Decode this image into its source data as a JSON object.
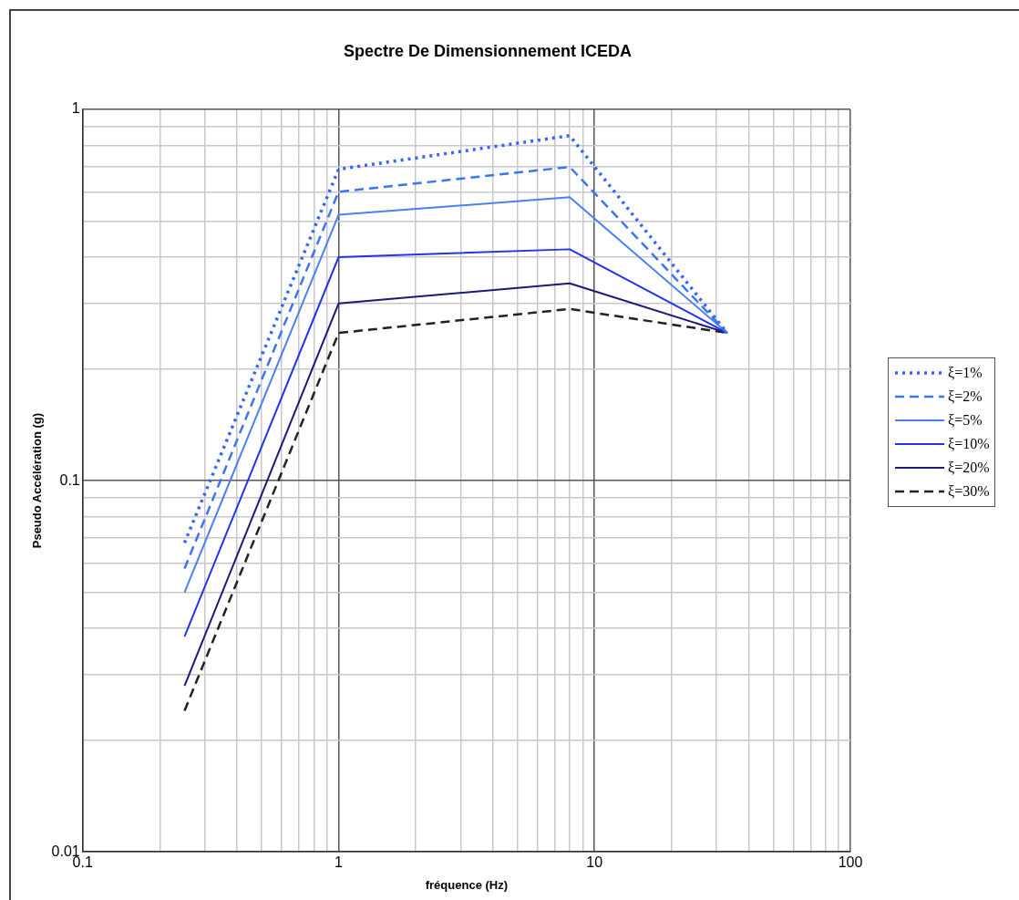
{
  "chart_data": {
    "type": "line",
    "title": "Spectre De Dimensionnement ICEDA",
    "xlabel": "fréquence (Hz)",
    "ylabel": "Pseudo Accélération (g)",
    "x": [
      0.25,
      1,
      8,
      33
    ],
    "series": [
      {
        "name": "ξ=1%",
        "color": "#3366ff",
        "line_style": "dotted",
        "values": [
          0.068,
          0.69,
          0.85,
          0.25
        ]
      },
      {
        "name": "ξ=2%",
        "color": "#3d74f2",
        "line_style": "dashed",
        "values": [
          0.058,
          0.6,
          0.7,
          0.25
        ]
      },
      {
        "name": "ξ=5%",
        "color": "#4a80f5",
        "line_style": "solid",
        "values": [
          0.05,
          0.52,
          0.58,
          0.25
        ]
      },
      {
        "name": "ξ=10%",
        "color": "#2233ee",
        "line_style": "solid",
        "values": [
          0.038,
          0.4,
          0.42,
          0.25
        ]
      },
      {
        "name": "ξ=20%",
        "color": "#1a1a7a",
        "line_style": "solid",
        "values": [
          0.028,
          0.3,
          0.34,
          0.25
        ]
      },
      {
        "name": "ξ=30%",
        "color": "#222222",
        "line_style": "dashed",
        "values": [
          0.024,
          0.25,
          0.29,
          0.25
        ]
      }
    ],
    "log": "xy",
    "xlim": [
      0.1,
      100
    ],
    "ylim": [
      0.01,
      1
    ],
    "xticks": [
      0.1,
      1,
      10,
      100
    ],
    "yticks": [
      0.01,
      0.1,
      1
    ],
    "grid": true,
    "legend": "right",
    "marker": "none"
  }
}
